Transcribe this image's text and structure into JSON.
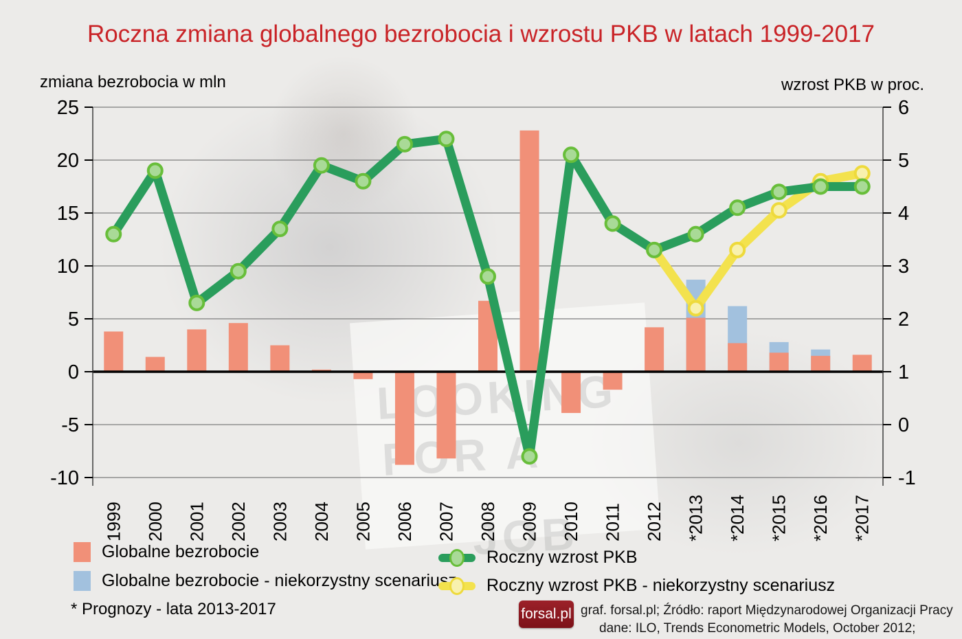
{
  "title": "Roczna zmiana globalnego bezrobocia i wzrostu PKB w latach 1999-2017",
  "axes": {
    "left_label": "zmiana bezrobocia w mln",
    "right_label": "wzrost PKB w proc.",
    "left_ticks": [
      25,
      20,
      15,
      10,
      5,
      0,
      -5,
      -10
    ],
    "right_ticks": [
      6,
      5,
      4,
      3,
      2,
      1,
      0,
      -1
    ]
  },
  "chart_data": {
    "type": "bar",
    "subtype": "bar-line combo, dual axis",
    "categories": [
      "1999",
      "2000",
      "2001",
      "2002",
      "2003",
      "2004",
      "2005",
      "2006",
      "2007",
      "2008",
      "2009",
      "2010",
      "2011",
      "2012",
      "*2013",
      "*2014",
      "*2015",
      "*2016",
      "*2017"
    ],
    "left_axis": {
      "label": "zmiana bezrobocia w mln",
      "ylim": [
        -10,
        25
      ],
      "grid_step": 5
    },
    "right_axis": {
      "label": "wzrost PKB w proc.",
      "ylim": [
        -1,
        6
      ],
      "grid_step": 1
    },
    "series": [
      {
        "name": "Globalne bezrobocie",
        "type": "bar",
        "axis": "left",
        "color": "#f19078",
        "values": [
          3.8,
          1.4,
          4.0,
          4.6,
          2.5,
          0.2,
          -0.7,
          -8.8,
          -8.2,
          6.7,
          22.8,
          -3.9,
          -1.7,
          4.2,
          5.1,
          2.7,
          1.8,
          1.5,
          1.6
        ]
      },
      {
        "name": "Globalne bezrobocie - niekorzystny scenariusz",
        "type": "bar",
        "axis": "left",
        "color": "#a2c1de",
        "values": [
          null,
          null,
          null,
          null,
          null,
          null,
          null,
          null,
          null,
          null,
          null,
          null,
          null,
          null,
          8.7,
          6.2,
          2.8,
          2.1,
          null
        ]
      },
      {
        "name": "Roczny wzrost PKB",
        "type": "line",
        "axis": "right",
        "color": "#2a9d5c",
        "marker_fill": "#a9da97",
        "marker_stroke": "#68be3a",
        "values": [
          3.6,
          4.8,
          2.3,
          2.9,
          3.7,
          4.9,
          4.6,
          5.3,
          5.4,
          2.8,
          -0.6,
          5.1,
          3.8,
          3.3,
          3.6,
          4.1,
          4.4,
          4.5,
          4.5
        ]
      },
      {
        "name": "Roczny wzrost PKB - niekorzystny scenariusz",
        "type": "line",
        "axis": "right",
        "color": "#f3e24e",
        "marker_fill": "#f8f1ae",
        "marker_stroke": "#eeda3c",
        "values": [
          null,
          null,
          null,
          null,
          null,
          null,
          null,
          null,
          null,
          null,
          null,
          null,
          null,
          3.3,
          2.2,
          3.3,
          4.05,
          4.6,
          4.75
        ]
      }
    ],
    "grid": true,
    "legend_position": "bottom"
  },
  "footnote": "* Prognozy - lata 2013-2017",
  "branding": {
    "logo_text": "forsal.pl",
    "source_line1": "graf. forsal.pl; Źródło: raport Międzynarodowej Organizacji Pracy",
    "source_line2": "dane: ILO, Trends Econometric Models, October 2012;"
  },
  "background": {
    "watermark_lines": [
      "LOOKING",
      "FOR A",
      "JOB"
    ]
  },
  "colors": {
    "title": "#c92327",
    "grid": "#7d7d7d",
    "zero_line": "#000000",
    "logo_bg": "#8e1b22"
  }
}
